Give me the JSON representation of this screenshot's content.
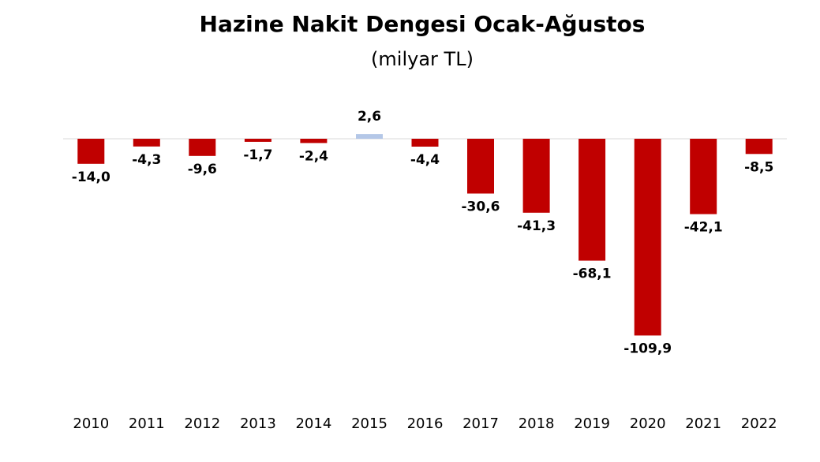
{
  "chart_data": {
    "type": "bar",
    "title": "Hazine Nakit Dengesi Ocak-Ağustos",
    "subtitle": "(milyar TL)",
    "categories": [
      "2010",
      "2011",
      "2012",
      "2013",
      "2014",
      "2015",
      "2016",
      "2017",
      "2018",
      "2019",
      "2020",
      "2021",
      "2022"
    ],
    "values": [
      -14.0,
      -4.3,
      -9.6,
      -1.7,
      -2.4,
      2.6,
      -4.4,
      -30.6,
      -41.3,
      -68.1,
      -109.9,
      -42.1,
      -8.5
    ],
    "data_labels": [
      "-14,0",
      "-4,3",
      "-9,6",
      "-1,7",
      "-2,4",
      "2,6",
      "-4,4",
      "-30,6",
      "-41,3",
      "-68,1",
      "-109,9",
      "-42,1",
      "-8,5"
    ],
    "xlabel": "",
    "ylabel": "",
    "grid": false,
    "legend": "none",
    "colors": {
      "negative": "#c00000",
      "positive": "#b4c7e7",
      "axis": "#d9d9d9"
    }
  }
}
